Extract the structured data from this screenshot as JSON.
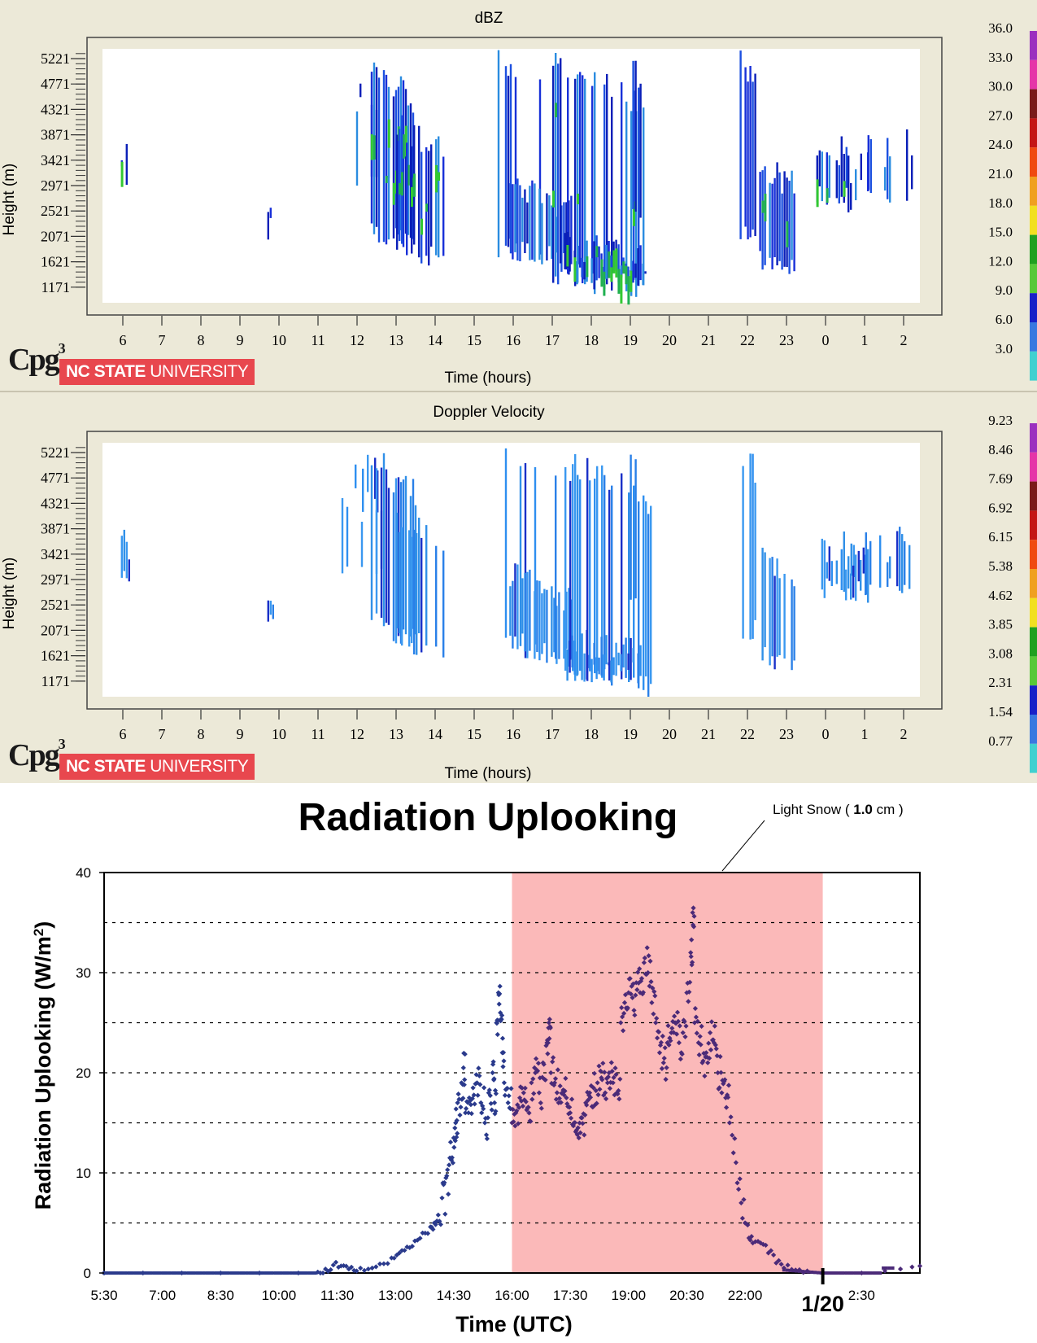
{
  "chart_data": [
    {
      "type": "heatmap",
      "title": "dBZ",
      "xlabel": "Time (hours)",
      "ylabel": "Height (m)",
      "x_ticks": [
        "6",
        "7",
        "8",
        "9",
        "10",
        "11",
        "12",
        "13",
        "14",
        "15",
        "16",
        "17",
        "18",
        "19",
        "20",
        "21",
        "22",
        "23",
        "0",
        "1",
        "2"
      ],
      "y_ticks": [
        "5221",
        "4771",
        "4321",
        "3871",
        "3421",
        "2971",
        "2521",
        "2071",
        "1621",
        "1171"
      ],
      "colorbar_ticks": [
        "36.0",
        "33.0",
        "30.0",
        "27.0",
        "24.0",
        "21.0",
        "18.0",
        "15.0",
        "12.0",
        "9.0",
        "6.0",
        "3.0"
      ],
      "logos": {
        "cpg": "Cpg",
        "cpg_sup": "3",
        "ncsu_bold": "NC STATE",
        "ncsu_thin": "UNIVERSITY"
      }
    },
    {
      "type": "heatmap",
      "title": "Doppler Velocity",
      "xlabel": "Time (hours)",
      "ylabel": "Height (m)",
      "x_ticks": [
        "6",
        "7",
        "8",
        "9",
        "10",
        "11",
        "12",
        "13",
        "14",
        "15",
        "16",
        "17",
        "18",
        "19",
        "20",
        "21",
        "22",
        "23",
        "0",
        "1",
        "2"
      ],
      "y_ticks": [
        "5221",
        "4771",
        "4321",
        "3871",
        "3421",
        "2971",
        "2521",
        "2071",
        "1621",
        "1171"
      ],
      "colorbar_ticks": [
        "9.23",
        "8.46",
        "7.69",
        "6.92",
        "6.15",
        "5.38",
        "4.62",
        "3.85",
        "3.08",
        "2.31",
        "1.54",
        "0.77"
      ],
      "logos": {
        "cpg": "Cpg",
        "cpg_sup": "3",
        "ncsu_bold": "NC STATE",
        "ncsu_thin": "UNIVERSITY"
      }
    },
    {
      "type": "scatter",
      "title": "Radiation Uplooking",
      "xlabel": "Time (UTC)",
      "ylabel": "Radiation Uplooking (W/m2)",
      "ylabel_main": "Radiation Uplooking (W/m",
      "ylabel_sup": "2",
      "ylabel_end": ")",
      "x_ticks": [
        "5:30",
        "7:00",
        "8:30",
        "10:00",
        "11:30",
        "13:00",
        "14:30",
        "16:00",
        "17:30",
        "19:00",
        "20:30",
        "22:00",
        "1/20",
        "2:30"
      ],
      "ylim": [
        0,
        40
      ],
      "y_ticks": [
        0,
        10,
        20,
        30,
        40
      ],
      "grid": "dashed horizontal every 5",
      "shaded_region": {
        "from": "16:00",
        "to": "24:00",
        "color": "#fbb9b9"
      },
      "annotation": {
        "text": "Light Snow ( ",
        "bold": "1.0",
        "unit": " cm )"
      },
      "series_color_before": "#2a3a8c",
      "series_color_during": "#4b2a78",
      "points_h_w": [
        [
          5.5,
          0
        ],
        [
          6.5,
          0
        ],
        [
          7.5,
          0
        ],
        [
          8.5,
          0
        ],
        [
          9.5,
          0
        ],
        [
          10.5,
          0
        ],
        [
          11,
          0.1
        ],
        [
          11.2,
          0.4
        ],
        [
          11.4,
          0.8
        ],
        [
          11.6,
          0.7
        ],
        [
          11.8,
          0.4
        ],
        [
          12,
          0.2
        ],
        [
          12.3,
          0.4
        ],
        [
          12.6,
          0.9
        ],
        [
          12.9,
          1.5
        ],
        [
          13.1,
          2.0
        ],
        [
          13.3,
          2.6
        ],
        [
          13.5,
          3.2
        ],
        [
          13.7,
          4.0
        ],
        [
          13.9,
          4.6
        ],
        [
          14,
          5
        ],
        [
          14.1,
          5.8
        ],
        [
          14.2,
          7.5
        ],
        [
          14.3,
          9.5
        ],
        [
          14.4,
          11.5
        ],
        [
          14.5,
          13.5
        ],
        [
          14.55,
          15
        ],
        [
          14.6,
          17
        ],
        [
          14.7,
          19
        ],
        [
          14.75,
          20.5
        ],
        [
          14.8,
          16
        ],
        [
          14.9,
          17.5
        ],
        [
          15,
          18.5
        ],
        [
          15.1,
          19
        ],
        [
          15.2,
          17
        ],
        [
          15.3,
          15
        ],
        [
          15.4,
          18
        ],
        [
          15.5,
          20
        ],
        [
          15.55,
          17
        ],
        [
          15.6,
          25
        ],
        [
          15.65,
          28
        ],
        [
          15.7,
          26
        ],
        [
          15.75,
          22
        ],
        [
          15.8,
          19
        ],
        [
          15.9,
          17
        ],
        [
          16.0,
          15
        ],
        [
          16.1,
          16
        ],
        [
          16.2,
          17.5
        ],
        [
          16.3,
          18
        ],
        [
          16.4,
          16.5
        ],
        [
          16.5,
          19
        ],
        [
          16.6,
          20
        ],
        [
          16.7,
          18
        ],
        [
          16.8,
          21
        ],
        [
          16.9,
          23
        ],
        [
          16.95,
          25
        ],
        [
          17.0,
          20
        ],
        [
          17.1,
          19
        ],
        [
          17.2,
          17
        ],
        [
          17.3,
          18
        ],
        [
          17.4,
          17.5
        ],
        [
          17.5,
          16
        ],
        [
          17.6,
          15
        ],
        [
          17.7,
          14.5
        ],
        [
          17.8,
          15.5
        ],
        [
          17.9,
          17
        ],
        [
          18.0,
          18
        ],
        [
          18.1,
          18.5
        ],
        [
          18.2,
          19
        ],
        [
          18.3,
          19.5
        ],
        [
          18.4,
          18
        ],
        [
          18.5,
          20
        ],
        [
          18.6,
          19
        ],
        [
          18.7,
          18
        ],
        [
          18.8,
          25
        ],
        [
          18.9,
          27
        ],
        [
          19.0,
          28
        ],
        [
          19.1,
          27.5
        ],
        [
          19.2,
          29
        ],
        [
          19.3,
          28
        ],
        [
          19.4,
          31
        ],
        [
          19.5,
          30
        ],
        [
          19.6,
          27
        ],
        [
          19.7,
          25
        ],
        [
          19.8,
          22
        ],
        [
          19.9,
          21
        ],
        [
          20.0,
          23
        ],
        [
          20.1,
          24
        ],
        [
          20.2,
          25
        ],
        [
          20.3,
          23
        ],
        [
          20.4,
          24
        ],
        [
          20.5,
          28
        ],
        [
          20.6,
          32
        ],
        [
          20.65,
          36
        ],
        [
          20.7,
          25
        ],
        [
          20.8,
          23
        ],
        [
          20.9,
          21
        ],
        [
          21.0,
          22
        ],
        [
          21.1,
          24
        ],
        [
          21.2,
          23
        ],
        [
          21.3,
          20
        ],
        [
          21.4,
          18
        ],
        [
          21.5,
          17.5
        ],
        [
          21.6,
          15
        ],
        [
          21.7,
          12
        ],
        [
          21.8,
          9
        ],
        [
          21.9,
          7
        ],
        [
          22.0,
          5
        ],
        [
          22.1,
          3.5
        ],
        [
          22.2,
          3
        ],
        [
          22.4,
          3
        ],
        [
          22.6,
          2
        ],
        [
          22.8,
          1
        ],
        [
          23.0,
          0.5
        ],
        [
          23.3,
          0.3
        ],
        [
          23.6,
          0.2
        ],
        [
          24.0,
          0
        ],
        [
          25.0,
          0
        ],
        [
          25.6,
          0.2
        ],
        [
          26.0,
          0.4
        ],
        [
          26.3,
          0.6
        ],
        [
          26.5,
          0.7
        ]
      ]
    }
  ]
}
